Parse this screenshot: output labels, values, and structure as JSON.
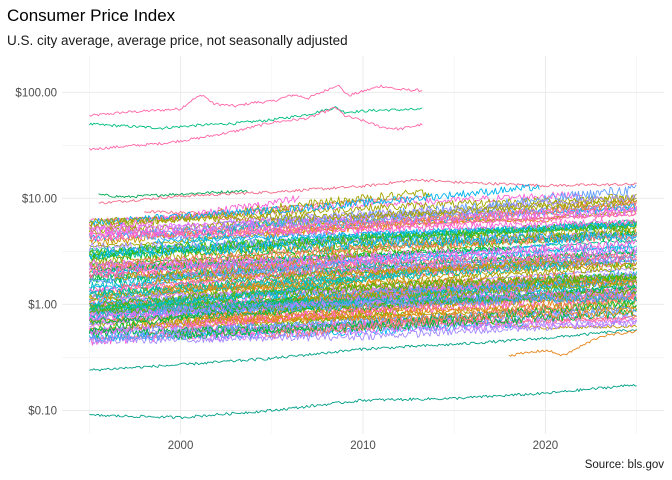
{
  "chart_data": {
    "type": "line",
    "title": "Consumer Price Index",
    "subtitle": "U.S. city average, average price, not seasonally adjusted",
    "caption": "Source: bls.gov",
    "xlabel": "",
    "ylabel": "",
    "x_ticks": [
      2000,
      2010,
      2020
    ],
    "xlim": [
      1993.5,
      2026.5
    ],
    "y_scale": "log10",
    "y_ticks": [
      0.1,
      1,
      10,
      100
    ],
    "y_tick_labels": [
      "$0.10",
      "$1.00",
      "$10.00",
      "$100.00"
    ],
    "ylim": [
      0.06,
      220
    ],
    "grid": true,
    "legend": "none",
    "palette": [
      "#F8766D",
      "#E7861B",
      "#C49A00",
      "#A3A500",
      "#53B400",
      "#00BA38",
      "#00C08B",
      "#00BFC4",
      "#00B4F0",
      "#619CFF",
      "#A58AFF",
      "#DF70F8",
      "#FB61D7",
      "#FF66A8"
    ],
    "series_note_free": true,
    "series": [
      {
        "color": "#FF66A8",
        "start": 1995,
        "end": 2013.3,
        "points": [
          [
            1995,
            60
          ],
          [
            1997,
            65
          ],
          [
            1999,
            68
          ],
          [
            2000,
            70
          ],
          [
            2000.6,
            84
          ],
          [
            2001.2,
            95
          ],
          [
            2001.8,
            78
          ],
          [
            2003,
            74
          ],
          [
            2004,
            80
          ],
          [
            2005,
            82
          ],
          [
            2006.2,
            95
          ],
          [
            2007,
            88
          ],
          [
            2008,
            105
          ],
          [
            2008.6,
            118
          ],
          [
            2009.2,
            93
          ],
          [
            2011,
            115
          ],
          [
            2012,
            106
          ],
          [
            2013.3,
            104
          ]
        ]
      },
      {
        "color": "#00BF7D",
        "start": 1995,
        "end": 2013.3,
        "points": [
          [
            1995,
            50
          ],
          [
            1997,
            48
          ],
          [
            1999,
            46
          ],
          [
            2001,
            49
          ],
          [
            2003,
            51
          ],
          [
            2005,
            55
          ],
          [
            2007,
            62
          ],
          [
            2008.5,
            72
          ],
          [
            2009,
            65
          ],
          [
            2011,
            68
          ],
          [
            2013.3,
            69
          ]
        ]
      },
      {
        "color": "#FF66A8",
        "start": 1995,
        "end": 2013.3,
        "points": [
          [
            1995,
            29
          ],
          [
            1997,
            31
          ],
          [
            1999,
            33
          ],
          [
            2001,
            37
          ],
          [
            2003,
            43
          ],
          [
            2005,
            52
          ],
          [
            2007,
            57
          ],
          [
            2008.5,
            72
          ],
          [
            2009,
            60
          ],
          [
            2010,
            54
          ],
          [
            2011,
            47
          ],
          [
            2012,
            45
          ],
          [
            2013.3,
            50
          ]
        ]
      },
      {
        "color": "#00A950",
        "start": 1995.5,
        "end": 2003.7,
        "points": [
          [
            1995.5,
            10.8
          ],
          [
            1997,
            10.3
          ],
          [
            1999,
            10.8
          ],
          [
            2001,
            11.2
          ],
          [
            2003.7,
            11.8
          ]
        ]
      },
      {
        "color": "#F26B8A",
        "start": 1995.5,
        "end": 2025,
        "points": [
          [
            1995.5,
            9
          ],
          [
            2000,
            10.5
          ],
          [
            2005,
            11.5
          ],
          [
            2010,
            13
          ],
          [
            2013,
            15
          ],
          [
            2015,
            14.2
          ],
          [
            2020,
            13.2
          ],
          [
            2025,
            13.6
          ]
        ]
      },
      {
        "color": "#F26B8A",
        "start": 1998,
        "end": 2013.3,
        "points": [
          [
            1998,
            7.5
          ],
          [
            2002,
            7.2
          ],
          [
            2006,
            8.4
          ],
          [
            2010,
            9.6
          ],
          [
            2013.3,
            10.2
          ]
        ]
      },
      {
        "color": "#E7861B",
        "start": 2000,
        "end": 2025,
        "points": [
          [
            2000,
            4.1
          ],
          [
            2005,
            4.8
          ],
          [
            2010,
            5.8
          ],
          [
            2015,
            6.3
          ],
          [
            2020,
            6.1
          ],
          [
            2022,
            7.8
          ],
          [
            2025,
            8.2
          ]
        ]
      },
      {
        "color": "#A3A500",
        "start": 1995,
        "end": 2025,
        "points": [
          [
            1995,
            3.5
          ],
          [
            2000,
            3.9
          ],
          [
            2005,
            4.6
          ],
          [
            2010,
            5.4
          ],
          [
            2015,
            6.0
          ],
          [
            2020,
            6.5
          ],
          [
            2025,
            7.6
          ]
        ]
      },
      {
        "color": "#53B400",
        "start": 1995,
        "end": 2025,
        "points": [
          [
            1995,
            2.9
          ],
          [
            2000,
            3.2
          ],
          [
            2005,
            3.6
          ],
          [
            2010,
            4.2
          ],
          [
            2015,
            4.6
          ],
          [
            2020,
            5.0
          ],
          [
            2025,
            5.6
          ]
        ]
      },
      {
        "color": "#00BA38",
        "start": 1995,
        "end": 2025,
        "points": [
          [
            1995,
            2.4
          ],
          [
            2000,
            2.6
          ],
          [
            2005,
            3.0
          ],
          [
            2010,
            3.4
          ],
          [
            2015,
            3.8
          ],
          [
            2020,
            4.2
          ],
          [
            2025,
            4.6
          ]
        ]
      },
      {
        "color": "#00C08B",
        "start": 1995,
        "end": 2025,
        "points": [
          [
            1995,
            2.0
          ],
          [
            2000,
            2.2
          ],
          [
            2005,
            2.5
          ],
          [
            2010,
            2.9
          ],
          [
            2015,
            3.2
          ],
          [
            2020,
            3.6
          ],
          [
            2025,
            4.0
          ]
        ]
      },
      {
        "color": "#00BFC4",
        "start": 1995,
        "end": 2025,
        "points": [
          [
            1995,
            1.7
          ],
          [
            2000,
            1.9
          ],
          [
            2005,
            2.2
          ],
          [
            2010,
            2.6
          ],
          [
            2015,
            2.9
          ],
          [
            2020,
            3.2
          ],
          [
            2025,
            3.5
          ]
        ]
      },
      {
        "color": "#00B4F0",
        "start": 1995,
        "end": 2025,
        "points": [
          [
            1995,
            1.45
          ],
          [
            2000,
            1.6
          ],
          [
            2005,
            1.85
          ],
          [
            2010,
            2.2
          ],
          [
            2015,
            2.5
          ],
          [
            2020,
            2.7
          ],
          [
            2025,
            3.1
          ]
        ]
      },
      {
        "color": "#619CFF",
        "start": 1995,
        "end": 2025,
        "points": [
          [
            1995,
            1.2
          ],
          [
            2000,
            1.35
          ],
          [
            2005,
            1.55
          ],
          [
            2010,
            1.85
          ],
          [
            2015,
            2.1
          ],
          [
            2020,
            2.3
          ],
          [
            2025,
            2.6
          ]
        ]
      },
      {
        "color": "#A58AFF",
        "start": 1995,
        "end": 2025,
        "points": [
          [
            1995,
            1.0
          ],
          [
            2000,
            1.1
          ],
          [
            2005,
            1.3
          ],
          [
            2010,
            1.5
          ],
          [
            2015,
            1.7
          ],
          [
            2020,
            1.9
          ],
          [
            2025,
            2.2
          ]
        ]
      },
      {
        "color": "#DF70F8",
        "start": 1995,
        "end": 2025,
        "points": [
          [
            1995,
            0.85
          ],
          [
            2000,
            0.92
          ],
          [
            2005,
            1.05
          ],
          [
            2010,
            1.25
          ],
          [
            2015,
            1.4
          ],
          [
            2020,
            1.55
          ],
          [
            2025,
            1.8
          ]
        ]
      },
      {
        "color": "#FB61D7",
        "start": 1995,
        "end": 2025,
        "points": [
          [
            1995,
            0.7
          ],
          [
            2000,
            0.75
          ],
          [
            2005,
            0.86
          ],
          [
            2010,
            1.0
          ],
          [
            2015,
            1.12
          ],
          [
            2020,
            1.25
          ],
          [
            2025,
            1.45
          ]
        ]
      },
      {
        "color": "#C49A00",
        "start": 1995,
        "end": 2025,
        "points": [
          [
            1995,
            0.58
          ],
          [
            2000,
            0.62
          ],
          [
            2005,
            0.68
          ],
          [
            2010,
            0.78
          ],
          [
            2015,
            0.82
          ],
          [
            2020,
            0.85
          ],
          [
            2025,
            0.95
          ]
        ]
      },
      {
        "color": "#F8766D",
        "start": 1995,
        "end": 2025,
        "points": [
          [
            1995,
            0.48
          ],
          [
            2000,
            0.5
          ],
          [
            2005,
            0.55
          ],
          [
            2010,
            0.62
          ],
          [
            2015,
            0.66
          ],
          [
            2020,
            0.7
          ],
          [
            2025,
            0.76
          ]
        ]
      },
      {
        "color": "#DF70F8",
        "start": 1995,
        "end": 2025,
        "points": [
          [
            1995,
            5.2
          ],
          [
            2000,
            5.6
          ],
          [
            2005,
            6.2
          ],
          [
            2010,
            6.8
          ],
          [
            2015,
            7.2
          ],
          [
            2020,
            7.4
          ],
          [
            2025,
            8.0
          ]
        ]
      },
      {
        "color": "#00A9FF",
        "start": 1995,
        "end": 2025,
        "points": [
          [
            1995,
            1.3
          ],
          [
            2000,
            1.8
          ],
          [
            2005,
            2.0
          ],
          [
            2010,
            2.8
          ],
          [
            2015,
            3.1
          ],
          [
            2020,
            3.6
          ],
          [
            2023,
            5.5
          ],
          [
            2025,
            4.5
          ]
        ]
      },
      {
        "color": "#7CAE00",
        "start": 1995,
        "end": 2025,
        "points": [
          [
            1995,
            0.9
          ],
          [
            2000,
            1.0
          ],
          [
            2005,
            1.1
          ],
          [
            2010,
            1.3
          ],
          [
            2015,
            1.45
          ],
          [
            2020,
            1.6
          ],
          [
            2025,
            1.9
          ]
        ]
      },
      {
        "color": "#00BFC4",
        "start": 1995,
        "end": 2025,
        "points": [
          [
            1995,
            1.1
          ],
          [
            2000,
            1.3
          ],
          [
            2005,
            1.6
          ],
          [
            2010,
            2.0
          ],
          [
            2015,
            2.3
          ],
          [
            2020,
            2.4
          ],
          [
            2025,
            2.9
          ]
        ]
      },
      {
        "color": "#00A087",
        "start": 1995,
        "end": 2025,
        "points": [
          [
            1995,
            0.24
          ],
          [
            2000,
            0.27
          ],
          [
            2005,
            0.31
          ],
          [
            2010,
            0.38
          ],
          [
            2015,
            0.42
          ],
          [
            2020,
            0.48
          ],
          [
            2025,
            0.58
          ]
        ]
      },
      {
        "color": "#00A087",
        "start": 1995,
        "end": 2025,
        "points": [
          [
            1995,
            0.09
          ],
          [
            2000,
            0.086
          ],
          [
            2005,
            0.1
          ],
          [
            2010,
            0.125
          ],
          [
            2015,
            0.13
          ],
          [
            2020,
            0.145
          ],
          [
            2025,
            0.175
          ]
        ]
      },
      {
        "color": "#E7861B",
        "start": 2018,
        "end": 2025,
        "points": [
          [
            2018,
            0.33
          ],
          [
            2020,
            0.37
          ],
          [
            2021,
            0.33
          ],
          [
            2023,
            0.5
          ],
          [
            2025,
            0.56
          ]
        ]
      },
      {
        "color": "#C49A00",
        "start": 2000,
        "end": 2025,
        "points": [
          [
            2000,
            0.75
          ],
          [
            2005,
            0.72
          ],
          [
            2010,
            0.74
          ],
          [
            2015,
            0.7
          ],
          [
            2020,
            0.6
          ],
          [
            2025,
            0.62
          ]
        ]
      },
      {
        "color": "#FF66A8",
        "start": 1995,
        "end": 2025,
        "points": [
          [
            1995,
            6.3
          ],
          [
            2000,
            6.6
          ],
          [
            2005,
            6.3
          ],
          [
            2010,
            6.0
          ],
          [
            2015,
            5.8
          ],
          [
            2020,
            6.5
          ],
          [
            2025,
            7.0
          ]
        ]
      },
      {
        "color": "#619CFF",
        "start": 1995,
        "end": 2025,
        "points": [
          [
            1995,
            0.65
          ],
          [
            2000,
            0.8
          ],
          [
            2005,
            0.95
          ],
          [
            2010,
            1.1
          ],
          [
            2015,
            1.3
          ],
          [
            2020,
            1.35
          ],
          [
            2025,
            1.5
          ]
        ]
      }
    ]
  }
}
